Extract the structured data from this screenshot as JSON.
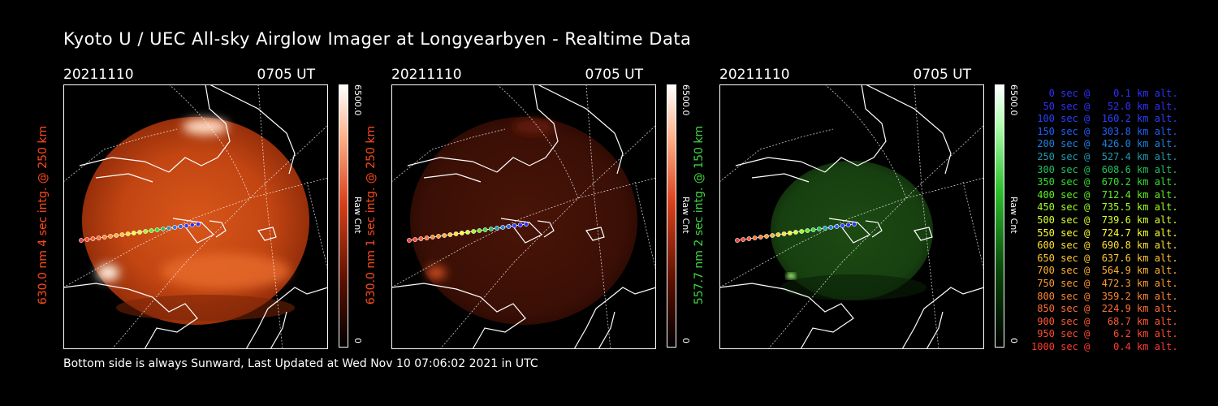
{
  "title": "Kyoto U / UEC All-sky Airglow Imager at Longyearbyen - Realtime Data",
  "footer": "Bottom side is always Sunward, Last Updated at Wed Nov 10 07:06:02 2021 in UTC",
  "panels": [
    {
      "date": "20211110",
      "time": "0705 UT",
      "ylabel": "630.0 nm  4 sec intg. @ 250 km",
      "label_color": "#ff4a1a",
      "cbar_max": "6500.0",
      "cbar_min": "0",
      "cbar_label": "Raw Cnt"
    },
    {
      "date": "20211110",
      "time": "0705 UT",
      "ylabel": "630.0 nm  1 sec intg. @ 250 km",
      "label_color": "#ff4a1a",
      "cbar_max": "6500.0",
      "cbar_min": "0",
      "cbar_label": "Raw Cnt"
    },
    {
      "date": "20211110",
      "time": "0705 UT",
      "ylabel": "557.7 nm  2 sec intg. @ 150 km",
      "label_color": "#3fd63f",
      "cbar_max": "6500.0",
      "cbar_min": "0",
      "cbar_label": "Raw Cnt"
    }
  ],
  "legend": [
    {
      "text": "   0 sec @    0.1 km alt.",
      "color": "#3030ff"
    },
    {
      "text": "  50 sec @   52.0 km alt.",
      "color": "#3030ff"
    },
    {
      "text": " 100 sec @  160.2 km alt.",
      "color": "#2a40ff"
    },
    {
      "text": " 150 sec @  303.8 km alt.",
      "color": "#2060ff"
    },
    {
      "text": " 200 sec @  426.0 km alt.",
      "color": "#2080e0"
    },
    {
      "text": " 250 sec @  527.4 km alt.",
      "color": "#209ab0"
    },
    {
      "text": " 300 sec @  608.6 km alt.",
      "color": "#20c060"
    },
    {
      "text": " 350 sec @  670.2 km alt.",
      "color": "#30e030"
    },
    {
      "text": " 400 sec @  712.4 km alt.",
      "color": "#60f020"
    },
    {
      "text": " 450 sec @  735.5 km alt.",
      "color": "#a0ff20"
    },
    {
      "text": " 500 sec @  739.6 km alt.",
      "color": "#d8ff30"
    },
    {
      "text": " 550 sec @  724.7 km alt.",
      "color": "#ffff30"
    },
    {
      "text": " 600 sec @  690.8 km alt.",
      "color": "#ffe030"
    },
    {
      "text": " 650 sec @  637.6 km alt.",
      "color": "#ffc830"
    },
    {
      "text": " 700 sec @  564.9 km alt.",
      "color": "#ffb030"
    },
    {
      "text": " 750 sec @  472.3 km alt.",
      "color": "#ff9a30"
    },
    {
      "text": " 800 sec @  359.2 km alt.",
      "color": "#ff8830"
    },
    {
      "text": " 850 sec @  224.9 km alt.",
      "color": "#ff7030"
    },
    {
      "text": " 900 sec @   68.7 km alt.",
      "color": "#ff5a30"
    },
    {
      "text": " 950 sec @    6.2 km alt.",
      "color": "#ff4a30"
    },
    {
      "text": "1000 sec @    0.4 km alt.",
      "color": "#ff3a30"
    }
  ]
}
